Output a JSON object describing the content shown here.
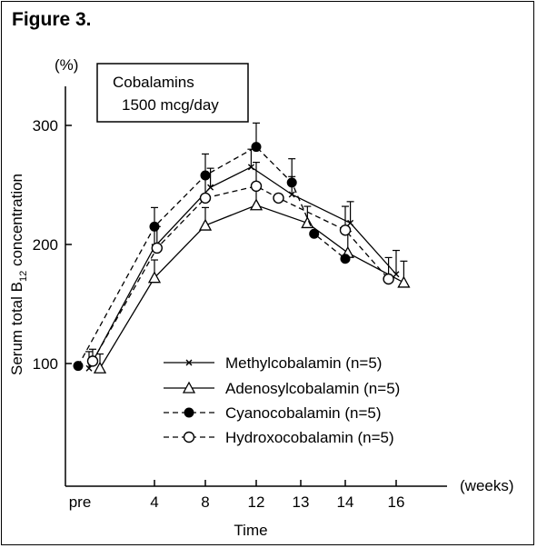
{
  "figure_label": "Figure 3.",
  "chart_data": {
    "type": "line",
    "box_text": [
      "Cobalamins",
      "1500 mcg/day"
    ],
    "ylabel": "Serum total B12 concentration",
    "ylabel_parts": {
      "before": "Serum total B",
      "sub": "12",
      "after": " concentration"
    },
    "yunit": "(%)",
    "xlabel": "Time",
    "xunit": "(weeks)",
    "categories": [
      "pre",
      "4",
      "8",
      "12",
      "13",
      "14",
      "16"
    ],
    "yticks": [
      100,
      200,
      300
    ],
    "ylim": [
      0,
      330
    ],
    "series": [
      {
        "name": "Methylcobalamin (n=5)",
        "marker": "x",
        "dash": "solid",
        "points": [
          {
            "x": 0.1,
            "y": 96,
            "err": 14
          },
          {
            "x": 1.0,
            "y": 198,
            "err": 16
          },
          {
            "x": 2.1,
            "y": 248,
            "err": 16
          },
          {
            "x": 2.9,
            "y": 265,
            "err": 15
          },
          {
            "x": 3.8,
            "y": 242,
            "err": 15
          },
          {
            "x": 5.1,
            "y": 218,
            "err": 18
          },
          {
            "x": 6.0,
            "y": 175,
            "err": 20
          }
        ]
      },
      {
        "name": "Adenosylcobalamin (n=5)",
        "marker": "triangle-open",
        "dash": "solid",
        "points": [
          {
            "x": 0.25,
            "y": 96,
            "err": 12
          },
          {
            "x": 1.0,
            "y": 172,
            "err": 15
          },
          {
            "x": 2.0,
            "y": 216,
            "err": 15
          },
          {
            "x": 3.0,
            "y": 233,
            "err": 15
          },
          {
            "x": 4.15,
            "y": 218,
            "err": 14
          },
          {
            "x": 5.05,
            "y": 193,
            "err": 18
          },
          {
            "x": 6.15,
            "y": 168,
            "err": 18
          }
        ]
      },
      {
        "name": "Cyanocobalamin (n=5)",
        "marker": "circle-filled",
        "dash": "dashed",
        "points": [
          {
            "x": -0.05,
            "y": 98,
            "err": 0
          },
          {
            "x": 1.0,
            "y": 215,
            "err": 16
          },
          {
            "x": 2.0,
            "y": 258,
            "err": 18
          },
          {
            "x": 3.0,
            "y": 282,
            "err": 20
          },
          {
            "x": 3.8,
            "y": 252,
            "err": 20
          },
          {
            "x": 4.3,
            "y": 209,
            "err": 0
          },
          {
            "x": 5.0,
            "y": 188,
            "err": 0
          }
        ]
      },
      {
        "name": "Hydroxocobalamin (n=5)",
        "marker": "circle-open",
        "dash": "dashed",
        "points": [
          {
            "x": 0.15,
            "y": 102,
            "err": 10
          },
          {
            "x": 1.05,
            "y": 197,
            "err": 18
          },
          {
            "x": 2.0,
            "y": 239,
            "err": 20
          },
          {
            "x": 3.0,
            "y": 249,
            "err": 20
          },
          {
            "x": 3.5,
            "y": 239,
            "err": 0
          },
          {
            "x": 5.0,
            "y": 212,
            "err": 20
          },
          {
            "x": 5.85,
            "y": 171,
            "err": 18
          }
        ]
      }
    ]
  }
}
